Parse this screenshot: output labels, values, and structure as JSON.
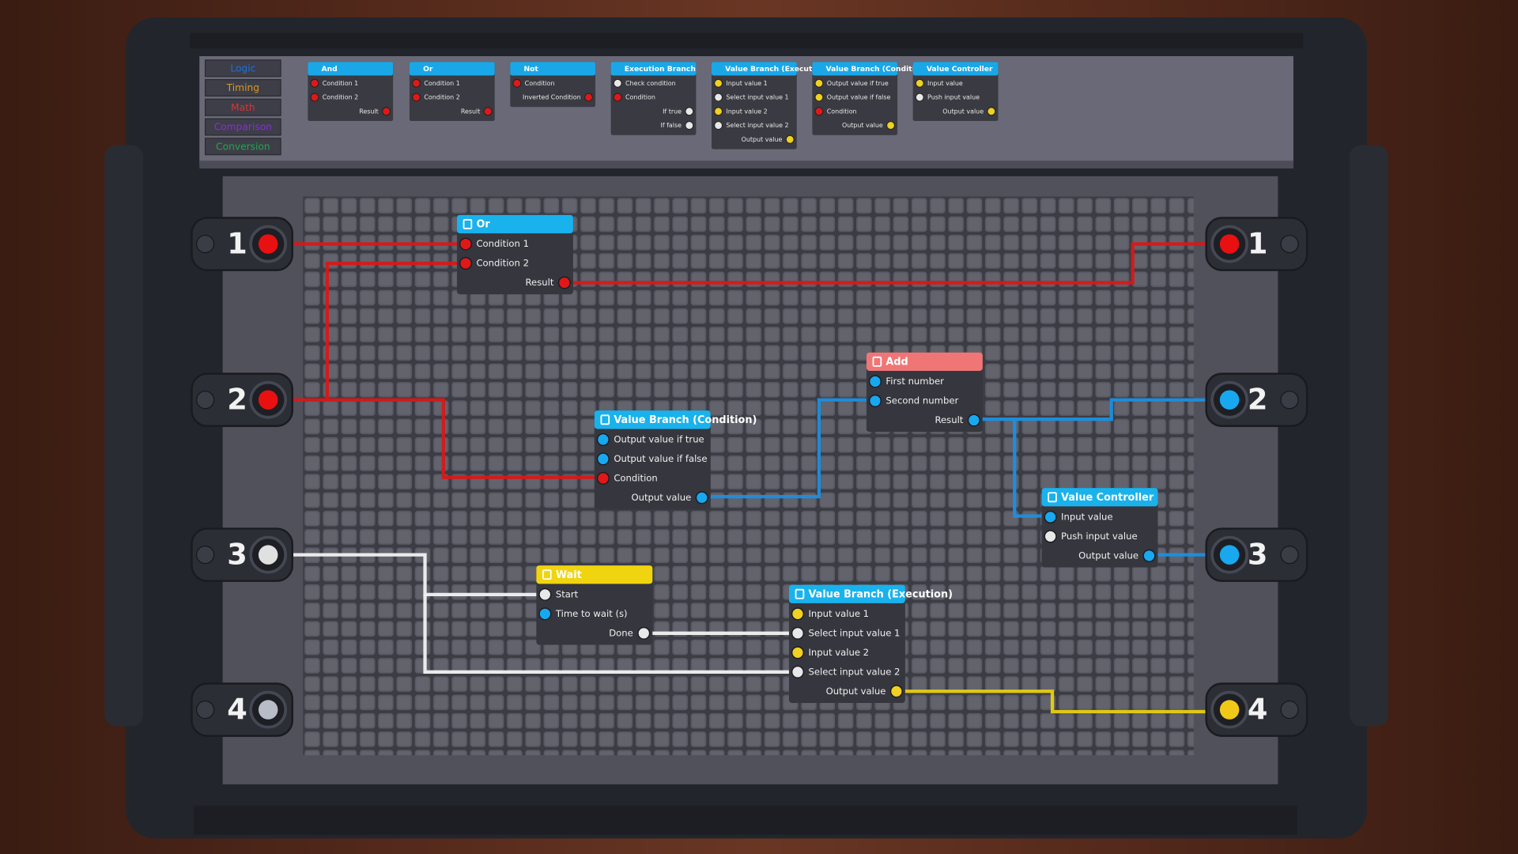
{
  "categories": [
    {
      "label": "Logic",
      "color": "#1f6fd6"
    },
    {
      "label": "Timing",
      "color": "#d89a1e"
    },
    {
      "label": "Math",
      "color": "#d83434"
    },
    {
      "label": "Comparison",
      "color": "#8a2be2"
    },
    {
      "label": "Conversion",
      "color": "#1fa84a"
    }
  ],
  "palette": [
    {
      "title": "And",
      "ports": [
        {
          "label": "Condition 1",
          "color": "#e01818",
          "side": "left"
        },
        {
          "label": "Condition 2",
          "color": "#e01818",
          "side": "left"
        },
        {
          "label": "Result",
          "color": "#e01818",
          "side": "right"
        }
      ]
    },
    {
      "title": "Or",
      "ports": [
        {
          "label": "Condition 1",
          "color": "#e01818",
          "side": "left"
        },
        {
          "label": "Condition 2",
          "color": "#e01818",
          "side": "left"
        },
        {
          "label": "Result",
          "color": "#e01818",
          "side": "right"
        }
      ]
    },
    {
      "title": "Not",
      "ports": [
        {
          "label": "Condition",
          "color": "#e01818",
          "side": "left"
        },
        {
          "label": "Inverted Condition",
          "color": "#e01818",
          "side": "right"
        }
      ]
    },
    {
      "title": "Execution Branch",
      "ports": [
        {
          "label": "Check condition",
          "color": "#e8e8e8",
          "side": "left"
        },
        {
          "label": "Condition",
          "color": "#e01818",
          "side": "left"
        },
        {
          "label": "If true",
          "color": "#e8e8e8",
          "side": "right"
        },
        {
          "label": "If false",
          "color": "#e8e8e8",
          "side": "right"
        }
      ]
    },
    {
      "title": "Value Branch (Execution)",
      "ports": [
        {
          "label": "Input value 1",
          "color": "#f0d020",
          "side": "left"
        },
        {
          "label": "Select input value 1",
          "color": "#e8e8e8",
          "side": "left"
        },
        {
          "label": "Input value 2",
          "color": "#f0d020",
          "side": "left"
        },
        {
          "label": "Select input value 2",
          "color": "#e8e8e8",
          "side": "left"
        },
        {
          "label": "Output value",
          "color": "#f0d020",
          "side": "right"
        }
      ]
    },
    {
      "title": "Value Branch (Condition)",
      "ports": [
        {
          "label": "Output value if true",
          "color": "#f0d020",
          "side": "left"
        },
        {
          "label": "Output value if false",
          "color": "#f0d020",
          "side": "left"
        },
        {
          "label": "Condition",
          "color": "#e01818",
          "side": "left"
        },
        {
          "label": "Output value",
          "color": "#f0d020",
          "side": "right"
        }
      ]
    },
    {
      "title": "Value Controller",
      "ports": [
        {
          "label": "Input value",
          "color": "#f0d020",
          "side": "left"
        },
        {
          "label": "Push input value",
          "color": "#e8e8e8",
          "side": "left"
        },
        {
          "label": "Output value",
          "color": "#f0d020",
          "side": "right"
        }
      ]
    }
  ],
  "inputs": [
    {
      "label": "1",
      "color": "#e81010"
    },
    {
      "label": "2",
      "color": "#e81010"
    },
    {
      "label": "3",
      "color": "#e0e0e0"
    },
    {
      "label": "4",
      "color": "#b8bcc8"
    }
  ],
  "outputs": [
    {
      "label": "1",
      "color": "#e81010"
    },
    {
      "label": "2",
      "color": "#18a8f0"
    },
    {
      "label": "3",
      "color": "#18a8f0"
    },
    {
      "label": "4",
      "color": "#f0c818"
    }
  ],
  "nodes": [
    {
      "title": "Or",
      "color": "#19b2ec",
      "ports": [
        {
          "label": "Condition 1",
          "color": "#e01818",
          "side": "left"
        },
        {
          "label": "Condition 2",
          "color": "#e01818",
          "side": "left"
        },
        {
          "label": "Result",
          "color": "#e01818",
          "side": "right"
        }
      ]
    },
    {
      "title": "Add",
      "color": "#f07676",
      "ports": [
        {
          "label": "First number",
          "color": "#18a8f0",
          "side": "left"
        },
        {
          "label": "Second number",
          "color": "#18a8f0",
          "side": "left"
        },
        {
          "label": "Result",
          "color": "#18a8f0",
          "side": "right"
        }
      ]
    },
    {
      "title": "Value Branch (Condition)",
      "color": "#19b2ec",
      "ports": [
        {
          "label": "Output value if true",
          "color": "#18a8f0",
          "side": "left"
        },
        {
          "label": "Output value if false",
          "color": "#18a8f0",
          "side": "left"
        },
        {
          "label": "Condition",
          "color": "#e01818",
          "side": "left"
        },
        {
          "label": "Output value",
          "color": "#18a8f0",
          "side": "right"
        }
      ]
    },
    {
      "title": "Value Controller",
      "color": "#19b2ec",
      "ports": [
        {
          "label": "Input value",
          "color": "#18a8f0",
          "side": "left"
        },
        {
          "label": "Push input value",
          "color": "#e8e8e8",
          "side": "left"
        },
        {
          "label": "Output value",
          "color": "#18a8f0",
          "side": "right"
        }
      ]
    },
    {
      "title": "Wait",
      "color": "#f0d410",
      "ports": [
        {
          "label": "Start",
          "color": "#e8e8e8",
          "side": "left"
        },
        {
          "label": "Time to wait (s)",
          "color": "#18a8f0",
          "side": "left"
        },
        {
          "label": "Done",
          "color": "#e8e8e8",
          "side": "right"
        }
      ]
    },
    {
      "title": "Value Branch (Execution)",
      "color": "#19b2ec",
      "ports": [
        {
          "label": "Input value 1",
          "color": "#f0d020",
          "side": "left"
        },
        {
          "label": "Select input value 1",
          "color": "#e8e8e8",
          "side": "left"
        },
        {
          "label": "Input value 2",
          "color": "#f0d020",
          "side": "left"
        },
        {
          "label": "Select input value 2",
          "color": "#e8e8e8",
          "side": "left"
        },
        {
          "label": "Output value",
          "color": "#f0d020",
          "side": "right"
        }
      ]
    }
  ]
}
